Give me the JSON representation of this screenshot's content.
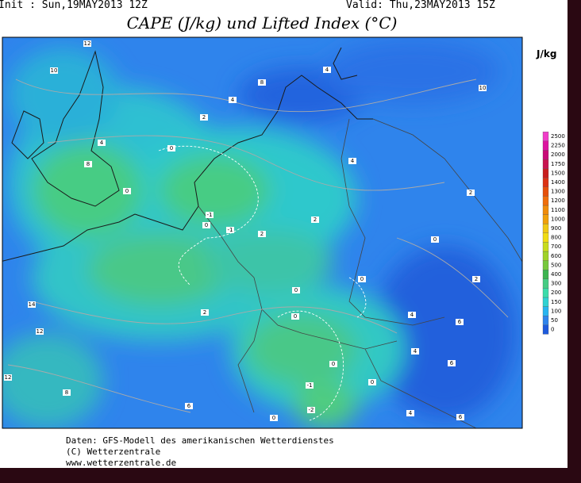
{
  "header": {
    "init": "Init : Sun,19MAY2013 12Z",
    "valid": "Valid: Thu,23MAY2013 15Z",
    "title": "CAPE (J/kg) und Lifted Index (°C)"
  },
  "legend": {
    "unit": "J/kg",
    "levels": [
      0,
      50,
      100,
      150,
      200,
      300,
      400,
      500,
      600,
      700,
      800,
      900,
      1000,
      1100,
      1200,
      1300,
      1400,
      1500,
      1750,
      2000,
      2250,
      2500
    ]
  },
  "map": {
    "contour_labels": [
      12,
      10,
      8,
      4,
      10,
      4,
      2,
      4,
      0,
      8,
      4,
      0,
      -1,
      0,
      -1,
      2,
      2,
      2,
      0,
      0,
      2,
      0,
      14,
      2,
      4,
      0,
      12,
      6,
      4,
      12,
      0,
      6,
      0,
      -1,
      8,
      6,
      -2,
      4,
      6,
      0
    ]
  },
  "footer": {
    "lines": [
      "Daten: GFS-Modell des amerikanischen Wetterdienstes",
      "(C) Wetterzentrale",
      "www.wetterzentrale.de"
    ]
  }
}
